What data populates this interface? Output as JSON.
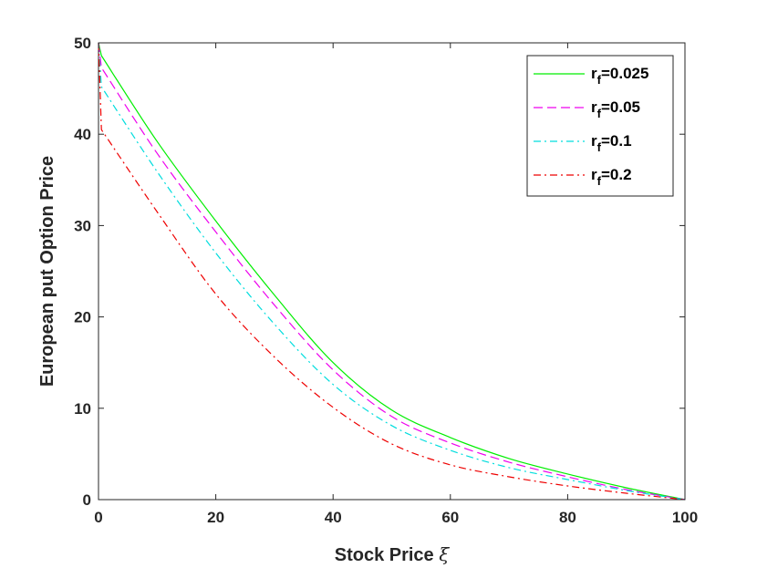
{
  "chart_data": {
    "type": "line",
    "title": "",
    "xlabel": "Stock Price",
    "xlabel_symbol": "ξ",
    "ylabel": "European put Option Price",
    "xlim": [
      0,
      100
    ],
    "ylim": [
      0,
      50
    ],
    "xticks": [
      0,
      20,
      40,
      60,
      80,
      100
    ],
    "yticks": [
      0,
      10,
      20,
      30,
      40,
      50
    ],
    "grid": false,
    "legend_position": "top-right",
    "series": [
      {
        "name_base": "r",
        "name_sub": "f",
        "name_value": "=0.025",
        "color": "#00ee00",
        "dash": "solid",
        "x": [
          0,
          0.5,
          10,
          20,
          30,
          40,
          50,
          60,
          70,
          80,
          90,
          100
        ],
        "y": [
          50,
          48.6,
          39.2,
          30.5,
          22.4,
          15.0,
          9.8,
          6.8,
          4.5,
          2.8,
          1.3,
          0
        ]
      },
      {
        "name_base": "r",
        "name_sub": "f",
        "name_value": "=0.05",
        "color": "#ee00ee",
        "dash": "dashed",
        "x": [
          0,
          0.5,
          10,
          20,
          30,
          40,
          50,
          60,
          70,
          80,
          90,
          100
        ],
        "y": [
          50,
          47.3,
          37.9,
          29.3,
          21.3,
          14.2,
          9.1,
          6.2,
          4.1,
          2.5,
          1.1,
          0
        ]
      },
      {
        "name_base": "r",
        "name_sub": "f",
        "name_value": "=0.1",
        "color": "#00dddd",
        "dash": "dashdot",
        "x": [
          0,
          0.5,
          10,
          20,
          30,
          40,
          50,
          60,
          70,
          80,
          90,
          100
        ],
        "y": [
          50,
          45.2,
          35.9,
          27.0,
          19.2,
          12.6,
          8.1,
          5.4,
          3.5,
          2.2,
          1.0,
          0
        ]
      },
      {
        "name_base": "r",
        "name_sub": "f",
        "name_value": "=0.2",
        "color": "#ee0000",
        "dash": "dashdot",
        "x": [
          0,
          0.5,
          10,
          20,
          30,
          40,
          50,
          60,
          70,
          80,
          90,
          100
        ],
        "y": [
          50,
          40.5,
          31.5,
          22.5,
          15.6,
          10.1,
          6.1,
          3.8,
          2.5,
          1.5,
          0.7,
          0
        ]
      }
    ]
  }
}
